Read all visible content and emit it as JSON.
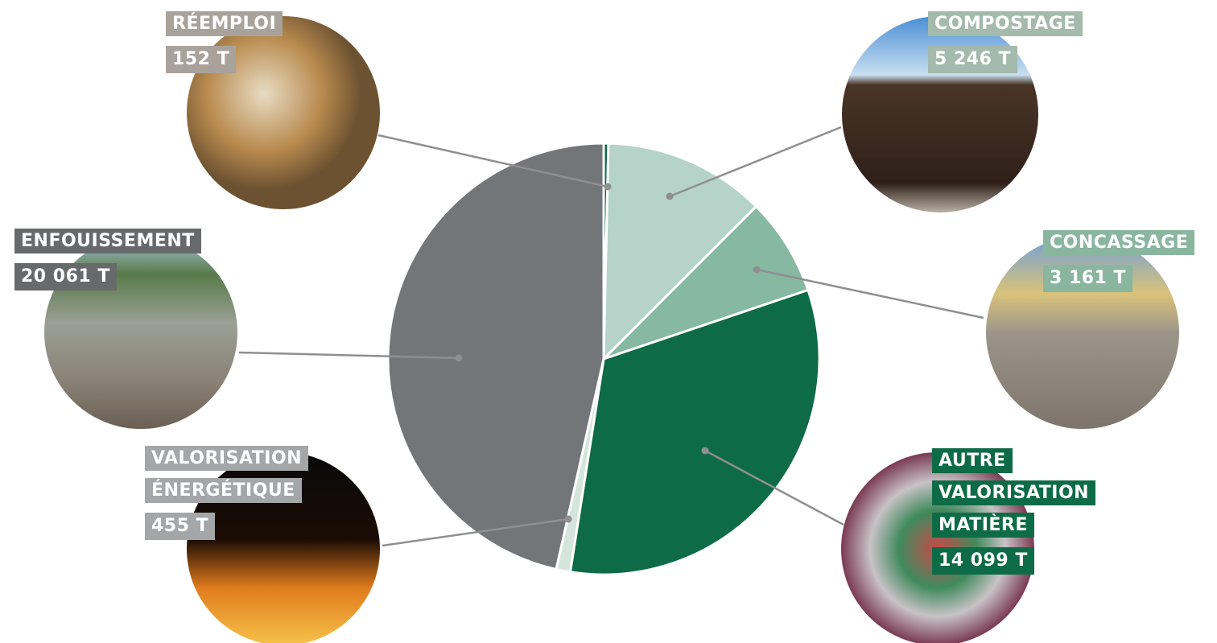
{
  "chart_data": {
    "type": "pie",
    "categories": [
      "RÉEMPLOI",
      "COMPOSTAGE",
      "CONCASSAGE",
      "AUTRE VALORISATION MATIÈRE",
      "VALORISATION ÉNERGÉTIQUE",
      "ENFOUISSEMENT"
    ],
    "values": [
      152,
      5246,
      3161,
      14099,
      455,
      20061
    ],
    "value_labels": [
      "152 T",
      "5 246 T",
      "3 161 T",
      "14 099 T",
      "455 T",
      "20 061 T"
    ],
    "colors": [
      "#0f6b45",
      "#b5d3c8",
      "#86b8a2",
      "#0e6b47",
      "#d3e5dc",
      "#737678"
    ]
  }
}
